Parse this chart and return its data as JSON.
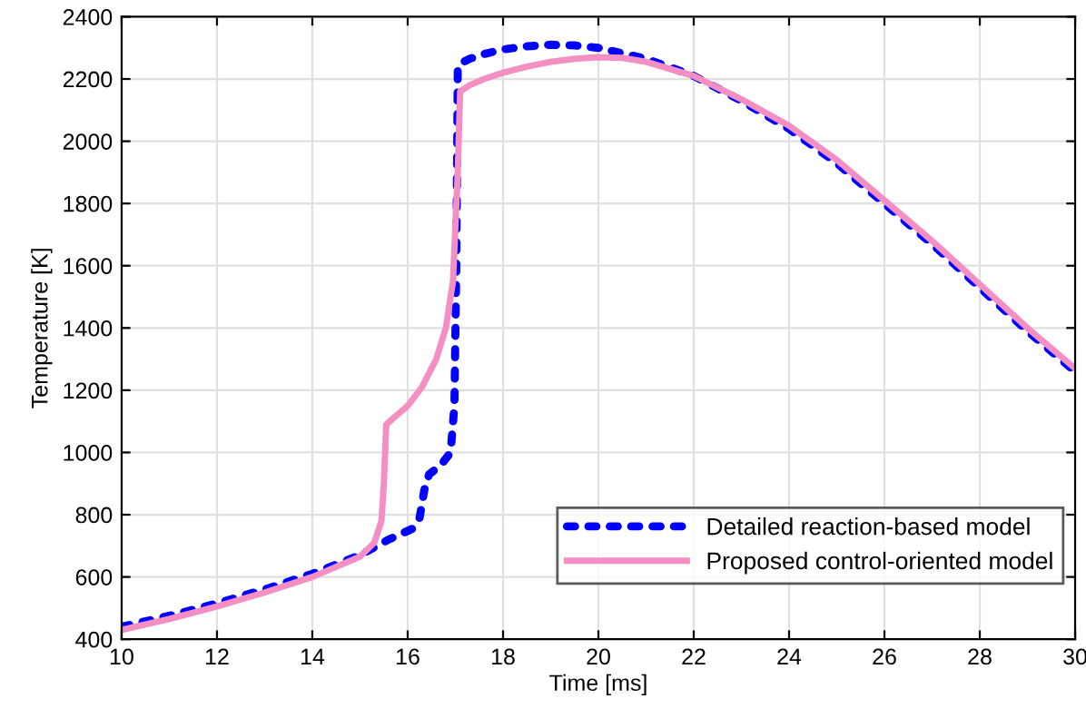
{
  "chart_data": {
    "type": "line",
    "xlabel": "Time [ms]",
    "ylabel": "Temperature [K]",
    "xlim": [
      10,
      30
    ],
    "xticks": [
      10,
      12,
      14,
      16,
      18,
      20,
      22,
      24,
      26,
      28,
      30
    ],
    "ylim": [
      400,
      2400
    ],
    "yticks": [
      400,
      600,
      800,
      1000,
      1200,
      1400,
      1600,
      1800,
      2000,
      2200,
      2400
    ],
    "grid": true,
    "legend": "bottom right",
    "series": [
      {
        "name": "Detailed reaction-based model",
        "color": "#0000ff",
        "line_style": "dotted",
        "x": [
          10,
          11,
          12,
          13,
          14,
          15,
          15.6,
          16.1,
          16.25,
          16.35,
          16.45,
          16.7,
          16.9,
          16.98,
          17.02,
          17.05,
          17.1,
          17.3,
          17.6,
          18,
          18.5,
          19,
          19.5,
          20,
          21,
          22,
          23,
          24,
          25,
          26,
          27,
          28,
          29,
          30
        ],
        "values": [
          440,
          475,
          515,
          560,
          610,
          670,
          720,
          755,
          790,
          880,
          930,
          960,
          1000,
          1150,
          1600,
          2230,
          2250,
          2265,
          2280,
          2295,
          2305,
          2310,
          2308,
          2300,
          2265,
          2210,
          2130,
          2040,
          1930,
          1800,
          1670,
          1530,
          1390,
          1260
        ]
      },
      {
        "name": "Proposed control-oriented model",
        "color": "#f48fc4",
        "line_style": "solid",
        "x": [
          10,
          11,
          12,
          13,
          14,
          15,
          15.3,
          15.45,
          15.5,
          15.55,
          15.7,
          16,
          16.3,
          16.6,
          16.8,
          16.95,
          17.05,
          17.1,
          17.3,
          17.6,
          18,
          18.5,
          19,
          19.5,
          20,
          20.5,
          21,
          22,
          23,
          24,
          25,
          26,
          27,
          28,
          29,
          30
        ],
        "values": [
          430,
          465,
          505,
          550,
          600,
          665,
          710,
          780,
          900,
          1090,
          1110,
          1150,
          1210,
          1300,
          1400,
          1550,
          1900,
          2160,
          2180,
          2200,
          2220,
          2240,
          2255,
          2265,
          2270,
          2268,
          2255,
          2210,
          2135,
          2050,
          1940,
          1810,
          1680,
          1540,
          1400,
          1270
        ]
      }
    ]
  }
}
